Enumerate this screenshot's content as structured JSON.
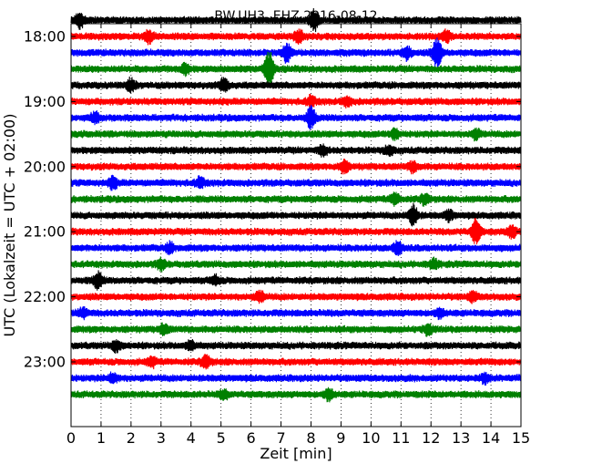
{
  "chart_data": {
    "type": "line",
    "title": "BW.UH3..EHZ 2016-08-12",
    "xlabel": "Zeit  [min]",
    "ylabel": "UTC (Lokalzeit = UTC + 02:00)",
    "xlim": [
      0,
      15
    ],
    "x_ticks": [
      "0",
      "1",
      "2",
      "3",
      "4",
      "5",
      "6",
      "7",
      "8",
      "9",
      "10",
      "11",
      "12",
      "13",
      "14",
      "15"
    ],
    "y_ticks": [
      "18:00",
      "19:00",
      "20:00",
      "21:00",
      "22:00",
      "23:00"
    ],
    "grid": "vertical dotted at each minute",
    "trace_colors": [
      "#000000",
      "#ff0000",
      "#0000ff",
      "#008000"
    ],
    "traces": [
      {
        "start": "17:45",
        "color": "#000000",
        "events": [
          [
            0.3,
            2.5
          ],
          [
            8.1,
            3.5
          ]
        ]
      },
      {
        "start": "18:00",
        "color": "#ff0000",
        "events": [
          [
            2.6,
            1.8
          ],
          [
            7.6,
            2.0
          ],
          [
            12.5,
            1.8
          ]
        ]
      },
      {
        "start": "18:15",
        "color": "#0000ff",
        "events": [
          [
            7.2,
            3.0
          ],
          [
            11.2,
            2.0
          ],
          [
            12.2,
            5.0
          ]
        ]
      },
      {
        "start": "18:30",
        "color": "#008000",
        "events": [
          [
            6.6,
            6.0
          ],
          [
            3.8,
            1.8
          ]
        ]
      },
      {
        "start": "18:45",
        "color": "#000000",
        "events": [
          [
            2.0,
            2.0
          ],
          [
            5.1,
            2.2
          ]
        ]
      },
      {
        "start": "19:00",
        "color": "#ff0000",
        "events": [
          [
            8.0,
            1.6
          ],
          [
            9.2,
            1.4
          ]
        ]
      },
      {
        "start": "19:15",
        "color": "#0000ff",
        "events": [
          [
            8.0,
            3.5
          ],
          [
            0.8,
            1.6
          ]
        ]
      },
      {
        "start": "19:30",
        "color": "#008000",
        "events": [
          [
            10.8,
            1.6
          ],
          [
            13.5,
            1.5
          ]
        ]
      },
      {
        "start": "19:45",
        "color": "#000000",
        "events": [
          [
            8.4,
            1.6
          ],
          [
            10.6,
            1.5
          ]
        ]
      },
      {
        "start": "20:00",
        "color": "#ff0000",
        "events": [
          [
            9.1,
            2.0
          ],
          [
            11.4,
            1.6
          ]
        ]
      },
      {
        "start": "20:15",
        "color": "#0000ff",
        "events": [
          [
            1.4,
            1.8
          ],
          [
            4.3,
            1.6
          ]
        ]
      },
      {
        "start": "20:30",
        "color": "#008000",
        "events": [
          [
            10.8,
            1.8
          ],
          [
            11.8,
            1.5
          ]
        ]
      },
      {
        "start": "20:45",
        "color": "#000000",
        "events": [
          [
            11.4,
            3.5
          ],
          [
            12.6,
            1.6
          ]
        ]
      },
      {
        "start": "21:00",
        "color": "#ff0000",
        "events": [
          [
            13.5,
            4.0
          ],
          [
            14.7,
            1.8
          ]
        ]
      },
      {
        "start": "21:15",
        "color": "#0000ff",
        "events": [
          [
            10.9,
            2.2
          ],
          [
            3.3,
            1.5
          ]
        ]
      },
      {
        "start": "21:30",
        "color": "#008000",
        "events": [
          [
            3.0,
            1.6
          ],
          [
            12.1,
            1.5
          ]
        ]
      },
      {
        "start": "21:45",
        "color": "#000000",
        "events": [
          [
            0.9,
            2.6
          ],
          [
            4.8,
            1.4
          ]
        ]
      },
      {
        "start": "22:00",
        "color": "#ff0000",
        "events": [
          [
            6.3,
            1.6
          ],
          [
            13.4,
            1.4
          ]
        ]
      },
      {
        "start": "22:15",
        "color": "#0000ff",
        "events": [
          [
            0.4,
            1.6
          ],
          [
            12.3,
            1.5
          ]
        ]
      },
      {
        "start": "22:30",
        "color": "#008000",
        "events": [
          [
            3.1,
            1.6
          ],
          [
            11.9,
            1.6
          ]
        ]
      },
      {
        "start": "22:45",
        "color": "#000000",
        "events": [
          [
            1.5,
            1.8
          ],
          [
            4.0,
            1.5
          ]
        ]
      },
      {
        "start": "23:00",
        "color": "#ff0000",
        "events": [
          [
            4.5,
            2.0
          ],
          [
            2.7,
            1.5
          ]
        ]
      },
      {
        "start": "23:15",
        "color": "#0000ff",
        "events": [
          [
            1.4,
            1.5
          ],
          [
            13.8,
            1.4
          ]
        ]
      },
      {
        "start": "23:30",
        "color": "#008000",
        "events": [
          [
            8.6,
            2.0
          ],
          [
            5.1,
            1.4
          ]
        ]
      }
    ]
  }
}
